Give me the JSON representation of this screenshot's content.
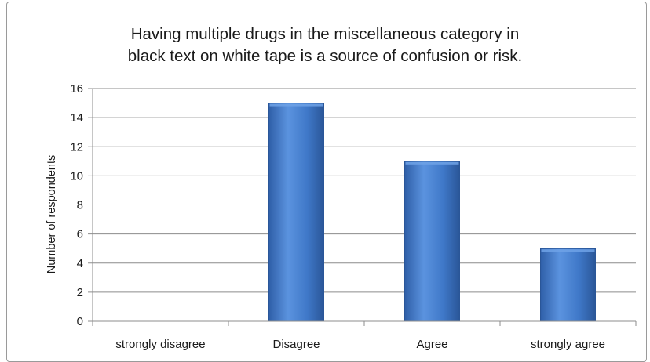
{
  "chart_data": {
    "type": "bar",
    "title": "Having multiple drugs in the miscellaneous category in\nblack text on white tape is a source of confusion or risk.",
    "xlabel": "",
    "ylabel": "Number of respondents",
    "categories": [
      "strongly disagree",
      "Disagree",
      "Agree",
      "strongly agree"
    ],
    "values": [
      0,
      15,
      11,
      5
    ],
    "ylim": [
      0,
      16
    ],
    "yticks": [
      0,
      2,
      4,
      6,
      8,
      10,
      12,
      14,
      16
    ],
    "grid": true,
    "legend": "none",
    "colors": {
      "bar_light": "#6fa2e6",
      "bar_mid": "#3f78c8",
      "bar_dark": "#2a5698",
      "grid": "#8c8c8c",
      "axis": "#8c8c8c",
      "frame": "#9a9a9a"
    }
  }
}
